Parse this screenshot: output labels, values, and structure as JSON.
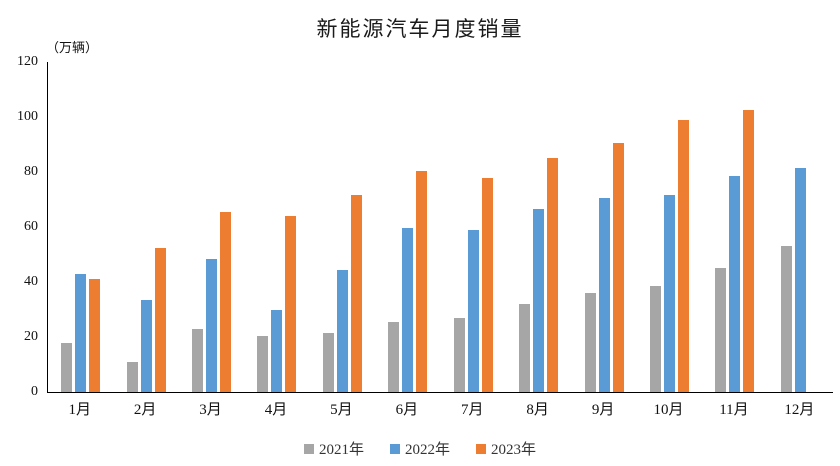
{
  "chart_data": {
    "type": "bar",
    "title": "新能源汽车月度销量",
    "unit_label": "（万辆）",
    "categories": [
      "1月",
      "2月",
      "3月",
      "4月",
      "5月",
      "6月",
      "7月",
      "8月",
      "9月",
      "10月",
      "11月",
      "12月"
    ],
    "series": [
      {
        "name": "2021年",
        "color": "#A6A6A6",
        "values": [
          18,
          11,
          23,
          20.5,
          21.5,
          25.5,
          27,
          32,
          36,
          38.5,
          45,
          53
        ]
      },
      {
        "name": "2022年",
        "color": "#5B9BD5",
        "values": [
          43,
          33.5,
          48.5,
          30,
          44.5,
          59.5,
          59,
          66.5,
          70.5,
          71.5,
          78.5,
          81.5
        ]
      },
      {
        "name": "2023年",
        "color": "#ED7D31",
        "values": [
          41,
          52.5,
          65.5,
          64,
          71.5,
          80.5,
          78,
          85,
          90.5,
          99,
          102.5,
          null
        ]
      }
    ],
    "ylim": [
      0,
      120
    ],
    "ytick_step": 20,
    "yticks": [
      0,
      20,
      40,
      60,
      80,
      100,
      120
    ],
    "xlabel": "",
    "ylabel": "（万辆）",
    "grid": false,
    "legend_position": "bottom",
    "axis_color": "#000000",
    "background_color": "#FFFFFF"
  }
}
